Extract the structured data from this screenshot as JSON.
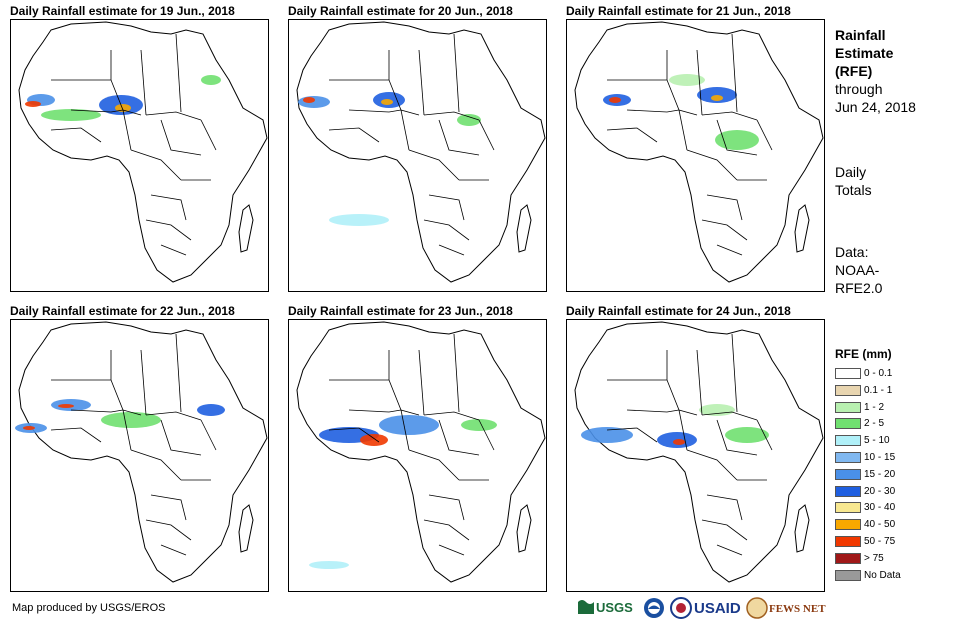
{
  "panels": [
    {
      "title": "Daily Rainfall estimate for 19 Jun., 2018"
    },
    {
      "title": "Daily Rainfall estimate for 20 Jun., 2018"
    },
    {
      "title": "Daily Rainfall estimate for 21 Jun., 2018"
    },
    {
      "title": "Daily Rainfall estimate for 22 Jun., 2018"
    },
    {
      "title": "Daily Rainfall estimate for 23 Jun., 2018"
    },
    {
      "title": "Daily Rainfall estimate for 24 Jun., 2018"
    }
  ],
  "side": {
    "title1": "Rainfall",
    "title2": "Estimate",
    "title3": "(RFE)",
    "through": "through",
    "date": "Jun 24, 2018",
    "daily1": "Daily",
    "daily2": "Totals",
    "data1": "Data:",
    "data2": "NOAA-",
    "data3": "RFE2.0"
  },
  "legend": {
    "title": "RFE (mm)",
    "items": [
      {
        "label": "0 - 0.1",
        "color": "#ffffff"
      },
      {
        "label": "0.1 - 1",
        "color": "#e8d5b0"
      },
      {
        "label": "1 - 2",
        "color": "#b8f0b0"
      },
      {
        "label": "2 - 5",
        "color": "#70e070"
      },
      {
        "label": "5 - 10",
        "color": "#b0f0f8"
      },
      {
        "label": "10 - 15",
        "color": "#80b8f0"
      },
      {
        "label": "15 - 20",
        "color": "#4a90e8"
      },
      {
        "label": "20 - 30",
        "color": "#1f5fe0"
      },
      {
        "label": "30 - 40",
        "color": "#f8e890"
      },
      {
        "label": "40 - 50",
        "color": "#f8a800"
      },
      {
        "label": "50 - 75",
        "color": "#f03800"
      },
      {
        "label": "> 75",
        "color": "#a01818"
      },
      {
        "label": "No Data",
        "color": "#999999"
      }
    ]
  },
  "footer": {
    "credit": "Map produced by USGS/EROS"
  },
  "logos": {
    "usgs": "USGS",
    "usaid": "USAID",
    "fewsnet": "FEWS NET"
  }
}
